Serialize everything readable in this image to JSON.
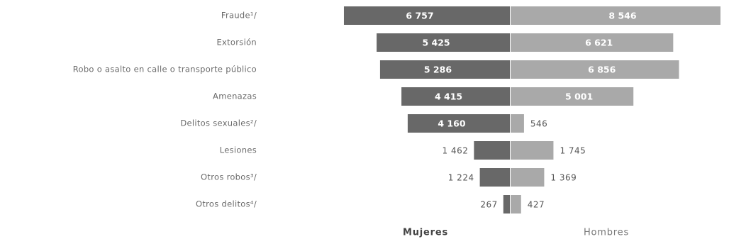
{
  "chart_data": {
    "type": "butterfly-bar",
    "categories": [
      "Fraude¹/",
      "Extorsión",
      "Robo o asalto en calle o transporte público",
      "Amenazas",
      "Delitos sexuales²/",
      "Lesiones",
      "Otros robos³/",
      "Otros delitos⁴/"
    ],
    "series": [
      {
        "name": "Mujeres",
        "color": "#686868",
        "values": [
          6757,
          5425,
          5286,
          4415,
          4160,
          1462,
          1224,
          267
        ],
        "value_labels": [
          "6 757",
          "5 425",
          "5 286",
          "4 415",
          "4 160",
          "1 462",
          "1 224",
          "267"
        ]
      },
      {
        "name": "Hombres",
        "color": "#a9a9a9",
        "values": [
          8546,
          6621,
          6856,
          5001,
          546,
          1745,
          1369,
          427
        ],
        "value_labels": [
          "8 546",
          "6 621",
          "6 856",
          "5 001",
          "546",
          "1 745",
          "1 369",
          "427"
        ]
      }
    ]
  }
}
